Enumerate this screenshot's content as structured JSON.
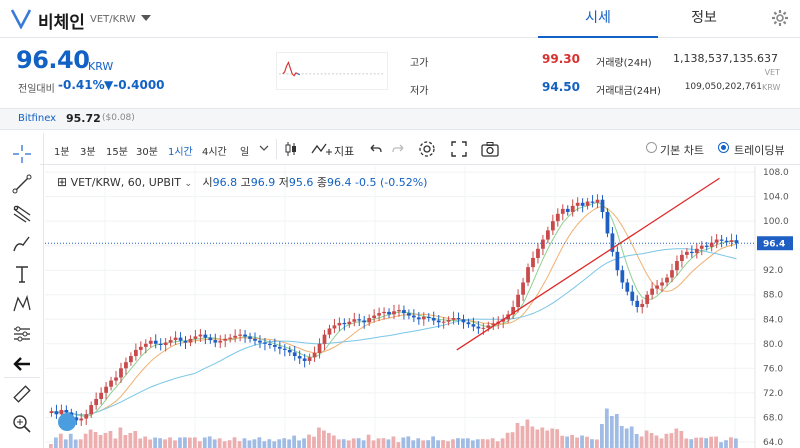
{
  "header": {
    "coin_name": "비체인",
    "pair": "VET/KRW",
    "tabs": [
      "시세",
      "정보"
    ]
  },
  "price": {
    "current": "96.40",
    "unit": "KRW",
    "change_label": "전일대비",
    "change_pct": "-0.41%",
    "change_abs": "▼-0.4000"
  },
  "stats": {
    "high_label": "고가",
    "high_value": "99.30",
    "low_label": "저가",
    "low_value": "94.50",
    "volume_label": "거래량(24H)",
    "volume_value": "1,138,537,135.637",
    "volume_unit": "VET",
    "amount_label": "거래대금(24H)",
    "amount_value": "109,050,202,761",
    "amount_unit": "KRW"
  },
  "bitfinex": {
    "label": "Bitfinex",
    "price": "95.72",
    "diff": "($0.08)"
  },
  "toolbar": {
    "timeframes": [
      "1분",
      "3분",
      "15분",
      "30분",
      "1시간",
      "4시간",
      "일"
    ],
    "active_timeframe": "1시간",
    "indicator_label": "지표",
    "chart_modes": [
      "기본 차트",
      "트레이딩뷰"
    ],
    "selected_mode": "트레이딩뷰"
  },
  "chart_data": {
    "type": "candlestick",
    "symbol_legend": "VET/KRW, 60, UPBIT",
    "ohlc_legend": {
      "open_label": "시",
      "open": "96.8",
      "high_label": "고",
      "high": "96.9",
      "low_label": "저",
      "low": "95.6",
      "close_label": "종",
      "close": "96.4",
      "change": "-0.5 (-0.52%)"
    },
    "y_ticks": [
      "108.0",
      "104.0",
      "100.0",
      "96.0",
      "92.0",
      "88.0",
      "84.0",
      "80.0",
      "76.0",
      "72.0",
      "68.0",
      "64.0"
    ],
    "ylim": [
      63,
      109
    ],
    "last_price_label": "96.4",
    "last_price": 96.4,
    "close_series": [
      69,
      68.5,
      69.2,
      68.8,
      68,
      67.5,
      67.8,
      68.5,
      70,
      71,
      72,
      73,
      74,
      74.5,
      76,
      77,
      78,
      79,
      79.5,
      80,
      80.5,
      80,
      79.8,
      80.2,
      80.6,
      81,
      80.5,
      80.2,
      80.8,
      81.2,
      81.5,
      81,
      80.6,
      80.2,
      80.5,
      80.8,
      81,
      81.3,
      81.5,
      81.2,
      80.8,
      80.5,
      80.2,
      80,
      79.8,
      79.5,
      79.2,
      79,
      78.6,
      78,
      77.6,
      77.2,
      77.8,
      78.5,
      80,
      81.5,
      82.5,
      83,
      83.4,
      83.2,
      83.6,
      84,
      83.8,
      83.5,
      84.2,
      84.6,
      85,
      85.2,
      84.8,
      85.3,
      85.5,
      85,
      84.6,
      84.3,
      84,
      84.4,
      84.2,
      83.8,
      83.5,
      83.6,
      83.9,
      84.2,
      84,
      83.5,
      83.2,
      82.8,
      82.5,
      82.6,
      83,
      83.3,
      83.6,
      84,
      84.8,
      86,
      88,
      90,
      92.5,
      94,
      95.5,
      97,
      98.5,
      100,
      101.2,
      102,
      101.5,
      102.5,
      103,
      102.5,
      103.2,
      103,
      103.5,
      101.5,
      98,
      95,
      92,
      90,
      88.5,
      87,
      86,
      86.5,
      88,
      89,
      89.5,
      90,
      90.8,
      92,
      93.5,
      94.5,
      95,
      94.8,
      95.5,
      96,
      95.8,
      96.5,
      97,
      96.8,
      96.6,
      96.9,
      96.4
    ],
    "trendline": {
      "from": [
        0.58,
        79
      ],
      "to": [
        0.95,
        107
      ]
    }
  }
}
